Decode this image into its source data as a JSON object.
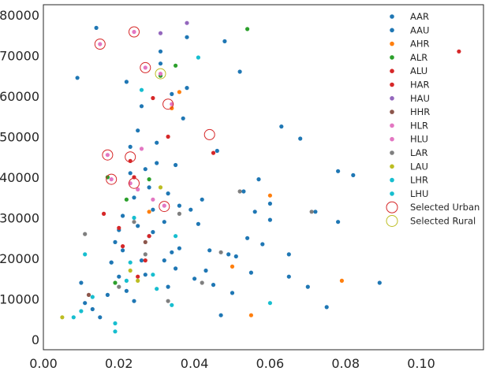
{
  "chart_data": {
    "type": "scatter",
    "title": "",
    "xlabel": "",
    "ylabel": "",
    "xlim": [
      0.0,
      0.1165
    ],
    "ylim": [
      -2500,
      82500
    ],
    "grid": false,
    "legend_position": "top-right",
    "xticks": [
      0.0,
      0.02,
      0.04,
      0.06,
      0.08,
      0.1
    ],
    "xtick_labels": [
      "0.00",
      "0.02",
      "0.04",
      "0.06",
      "0.08",
      "0.10"
    ],
    "yticks": [
      0,
      10000,
      20000,
      30000,
      40000,
      50000,
      60000,
      70000,
      80000
    ],
    "ytick_labels": [
      "0",
      "10000",
      "20000",
      "30000",
      "40000",
      "50000",
      "60000",
      "70000",
      "80000"
    ],
    "series": [
      {
        "name": "AAR",
        "color": "#1f77b4",
        "x": [
          0.009,
          0.01,
          0.011,
          0.013,
          0.014,
          0.015,
          0.017,
          0.018,
          0.019,
          0.02,
          0.021,
          0.022,
          0.023,
          0.024,
          0.025,
          0.026,
          0.027,
          0.028,
          0.029,
          0.03,
          0.031,
          0.032,
          0.033,
          0.034,
          0.035,
          0.036,
          0.038,
          0.04,
          0.042,
          0.044,
          0.045,
          0.046,
          0.047,
          0.049,
          0.05,
          0.052,
          0.053,
          0.055,
          0.056,
          0.058,
          0.06,
          0.063,
          0.065,
          0.068,
          0.072,
          0.075,
          0.078,
          0.082,
          0.089
        ],
        "y": [
          64500,
          14000,
          9000,
          7500,
          76800,
          5500,
          11000,
          19000,
          24000,
          15500,
          22000,
          12000,
          47500,
          35000,
          28000,
          19500,
          16000,
          25500,
          32000,
          43500,
          68000,
          29000,
          13000,
          21500,
          17500,
          33000,
          62000,
          15000,
          34500,
          22000,
          13500,
          46500,
          6000,
          21000,
          11500,
          66000,
          36500,
          16500,
          31500,
          23500,
          29500,
          52500,
          15500,
          49500,
          31500,
          8000,
          41500,
          40500,
          14000
        ]
      },
      {
        "name": "AAU",
        "color": "#1f77b4",
        "x": [
          0.018,
          0.02,
          0.021,
          0.022,
          0.023,
          0.024,
          0.025,
          0.026,
          0.027,
          0.028,
          0.029,
          0.03,
          0.031,
          0.032,
          0.033,
          0.034,
          0.035,
          0.036,
          0.037,
          0.038,
          0.039,
          0.041,
          0.043,
          0.048,
          0.051,
          0.054,
          0.057,
          0.06,
          0.065,
          0.07,
          0.078
        ],
        "y": [
          19000,
          27000,
          30500,
          63500,
          41000,
          9500,
          51500,
          57500,
          42000,
          37500,
          26500,
          48500,
          71000,
          19500,
          36000,
          60500,
          43000,
          22500,
          54500,
          74500,
          32000,
          28500,
          17000,
          73500,
          20500,
          25000,
          39500,
          33500,
          21000,
          13000,
          29000
        ]
      },
      {
        "name": "AHR",
        "color": "#ff7f0e",
        "x": [
          0.028,
          0.034,
          0.036,
          0.05,
          0.055,
          0.06,
          0.079
        ],
        "y": [
          31500,
          57000,
          61000,
          18000,
          6000,
          35500,
          14500
        ]
      },
      {
        "name": "ALR",
        "color": "#2ca02c",
        "x": [
          0.017,
          0.019,
          0.022,
          0.028,
          0.031,
          0.035,
          0.054
        ],
        "y": [
          40000,
          14000,
          34500,
          39500,
          65000,
          67500,
          76500
        ]
      },
      {
        "name": "ALU",
        "color": "#d62728",
        "x": [
          0.016,
          0.02,
          0.023,
          0.027,
          0.029,
          0.033,
          0.11
        ],
        "y": [
          31000,
          27500,
          44000,
          19500,
          59500,
          50000,
          71000
        ]
      },
      {
        "name": "HAR",
        "color": "#d62728",
        "x": [
          0.021,
          0.024,
          0.025,
          0.028,
          0.045
        ],
        "y": [
          23000,
          40000,
          15500,
          25500,
          46000
        ]
      },
      {
        "name": "HAU",
        "color": "#9467bd",
        "x": [
          0.031,
          0.038
        ],
        "y": [
          75500,
          78000
        ]
      },
      {
        "name": "HHR",
        "color": "#8c564b",
        "x": [
          0.012,
          0.027
        ],
        "y": [
          11000,
          24000
        ]
      },
      {
        "name": "HLR",
        "color": "#e377c2",
        "x": [
          0.017,
          0.018,
          0.024,
          0.027,
          0.031,
          0.032,
          0.034
        ],
        "y": [
          45500,
          39500,
          75800,
          67000,
          65500,
          33000,
          58000
        ]
      },
      {
        "name": "HLU",
        "color": "#e377c2",
        "x": [
          0.015,
          0.023,
          0.025,
          0.026,
          0.029
        ],
        "y": [
          72800,
          38500,
          37000,
          47000,
          34500
        ]
      },
      {
        "name": "LAR",
        "color": "#7f7f7f",
        "x": [
          0.011,
          0.02,
          0.024,
          0.027,
          0.033,
          0.036,
          0.042,
          0.047,
          0.052,
          0.071
        ],
        "y": [
          26000,
          13000,
          29000,
          21000,
          9500,
          31000,
          14000,
          21500,
          36500,
          31500
        ]
      },
      {
        "name": "LAU",
        "color": "#bcbd22",
        "x": [
          0.005,
          0.023,
          0.025,
          0.031
        ],
        "y": [
          5500,
          17000,
          14500,
          37500
        ]
      },
      {
        "name": "LHR",
        "color": "#17becf",
        "x": [
          0.01,
          0.013,
          0.019,
          0.023,
          0.026,
          0.029,
          0.034,
          0.041
        ],
        "y": [
          7000,
          10500,
          4000,
          19000,
          61500,
          16000,
          8500,
          69500
        ]
      },
      {
        "name": "LHU",
        "color": "#17becf",
        "x": [
          0.008,
          0.011,
          0.019,
          0.022,
          0.024,
          0.03,
          0.035,
          0.06
        ],
        "y": [
          5500,
          21000,
          2000,
          14500,
          30000,
          12500,
          25500,
          9000
        ]
      }
    ],
    "highlights": [
      {
        "name": "Selected Urban",
        "color": "#d62728",
        "x": [
          0.015,
          0.017,
          0.018,
          0.023,
          0.024,
          0.027,
          0.032,
          0.033,
          0.044,
          0.024
        ],
        "y": [
          72800,
          45500,
          39500,
          45000,
          75800,
          67000,
          32800,
          58000,
          50500,
          38500
        ]
      },
      {
        "name": "Selected Rural",
        "color": "#bcbd22",
        "x": [
          0.031
        ],
        "y": [
          65500
        ]
      }
    ]
  }
}
